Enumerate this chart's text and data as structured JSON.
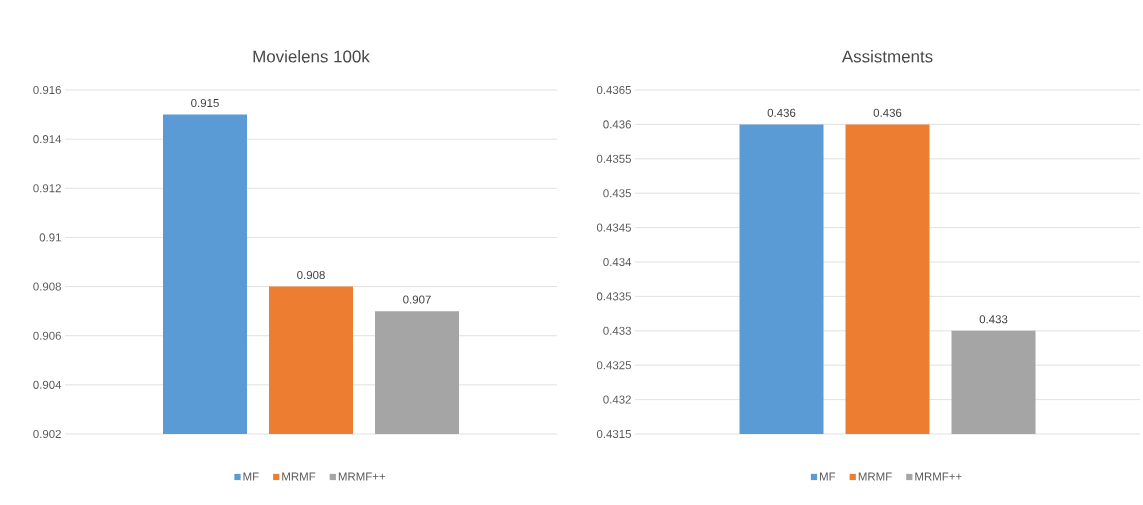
{
  "chart_data": [
    {
      "type": "bar",
      "title": "Movielens 100k",
      "categories": [
        null
      ],
      "series": [
        {
          "name": "MF",
          "color": "#5b9bd5",
          "values": [
            0.915
          ]
        },
        {
          "name": "MRMF",
          "color": "#ed7d31",
          "values": [
            0.908
          ]
        },
        {
          "name": "MRMF++",
          "color": "#a5a5a5",
          "values": [
            0.907
          ]
        }
      ],
      "ylim": [
        0.902,
        0.916
      ],
      "yticks": [
        0.902,
        0.904,
        0.906,
        0.908,
        0.91,
        0.912,
        0.914,
        0.916
      ],
      "grid": "y",
      "legend": "bottom",
      "data_labels": true
    },
    {
      "type": "bar",
      "title": "Assistments",
      "categories": [
        null
      ],
      "series": [
        {
          "name": "MF",
          "color": "#5b9bd5",
          "values": [
            0.436
          ]
        },
        {
          "name": "MRMF",
          "color": "#ed7d31",
          "values": [
            0.436
          ]
        },
        {
          "name": "MRMF++",
          "color": "#a5a5a5",
          "values": [
            0.433
          ]
        }
      ],
      "ylim": [
        0.4315,
        0.4365
      ],
      "yticks": [
        0.4315,
        0.432,
        0.4325,
        0.433,
        0.4335,
        0.434,
        0.4345,
        0.435,
        0.4355,
        0.436,
        0.4365
      ],
      "grid": "y",
      "legend": "bottom",
      "data_labels": true
    }
  ]
}
